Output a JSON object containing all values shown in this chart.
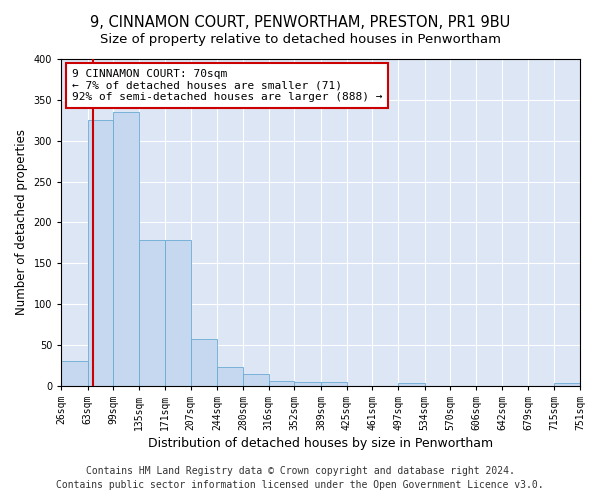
{
  "title1": "9, CINNAMON COURT, PENWORTHAM, PRESTON, PR1 9BU",
  "title2": "Size of property relative to detached houses in Penwortham",
  "xlabel": "Distribution of detached houses by size in Penwortham",
  "ylabel": "Number of detached properties",
  "bin_edges": [
    26,
    63,
    99,
    135,
    171,
    207,
    244,
    280,
    316,
    352,
    389,
    425,
    461,
    497,
    534,
    570,
    606,
    642,
    679,
    715,
    751
  ],
  "bar_heights": [
    30,
    325,
    335,
    178,
    178,
    57,
    23,
    14,
    6,
    5,
    5,
    0,
    0,
    4,
    0,
    0,
    0,
    0,
    0,
    4,
    0
  ],
  "bar_color": "#c5d8f0",
  "bar_edgecolor": "#6aaad4",
  "property_size": 70,
  "annotation_line1": "9 CINNAMON COURT: 70sqm",
  "annotation_line2": "← 7% of detached houses are smaller (71)",
  "annotation_line3": "92% of semi-detached houses are larger (888) →",
  "annotation_box_color": "#ffffff",
  "annotation_border_color": "#cc0000",
  "redline_color": "#cc0000",
  "ylim": [
    0,
    400
  ],
  "yticks": [
    0,
    50,
    100,
    150,
    200,
    250,
    300,
    350,
    400
  ],
  "figure_background": "#ffffff",
  "axes_background": "#dce6f5",
  "grid_color": "#ffffff",
  "footer1": "Contains HM Land Registry data © Crown copyright and database right 2024.",
  "footer2": "Contains public sector information licensed under the Open Government Licence v3.0.",
  "title1_fontsize": 10.5,
  "title2_fontsize": 9.5,
  "xlabel_fontsize": 9,
  "ylabel_fontsize": 8.5,
  "tick_fontsize": 7,
  "annotation_fontsize": 8,
  "footer_fontsize": 7
}
